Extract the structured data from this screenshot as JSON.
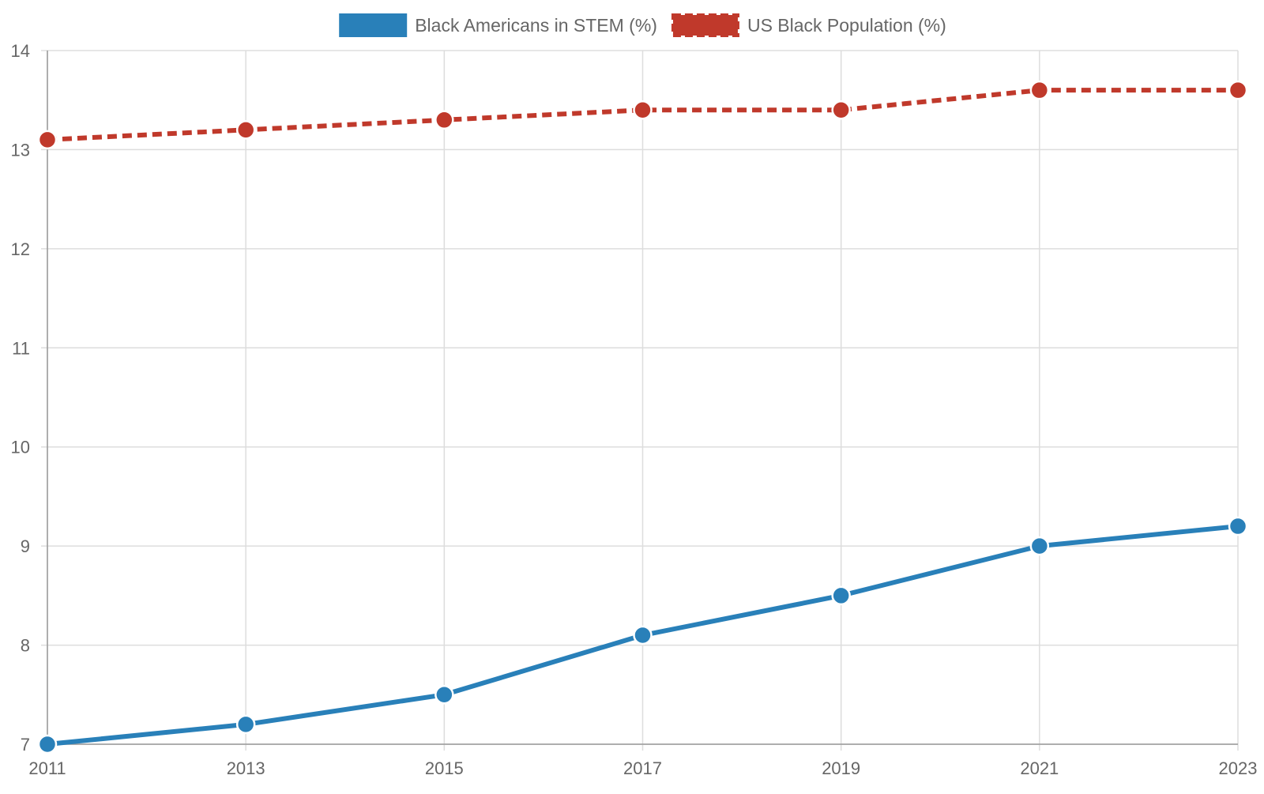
{
  "chart_data": {
    "type": "line",
    "title": "",
    "xlabel": "",
    "ylabel": "",
    "categories": [
      "2011",
      "2013",
      "2015",
      "2017",
      "2019",
      "2021",
      "2023"
    ],
    "y_ticks": [
      "7",
      "8",
      "9",
      "10",
      "11",
      "12",
      "13",
      "14"
    ],
    "ylim": [
      7,
      14
    ],
    "grid": true,
    "legend_position": "top",
    "series": [
      {
        "name": "Black Americans in STEM (%)",
        "values": [
          7.0,
          7.2,
          7.5,
          8.1,
          8.5,
          9.0,
          9.2
        ],
        "color": "#2980b9",
        "line_style": "solid"
      },
      {
        "name": "US Black Population (%)",
        "values": [
          13.1,
          13.2,
          13.3,
          13.4,
          13.4,
          13.6,
          13.6
        ],
        "color": "#c0392b",
        "line_style": "dashed"
      }
    ]
  }
}
